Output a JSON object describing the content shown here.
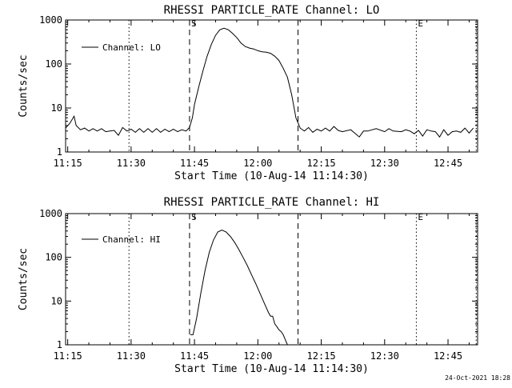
{
  "footer": {
    "timestamp": "24-Oct-2021 18:28"
  },
  "chart_data": [
    {
      "type": "line",
      "title": "RHESSI PARTICLE_RATE Channel: LO",
      "xlabel": "Start Time (10-Aug-14 11:14:30)",
      "ylabel": "Counts/sec",
      "yscale": "log",
      "ylim": [
        1,
        1000
      ],
      "yticks": [
        {
          "value": 1,
          "label": "1"
        },
        {
          "value": 10,
          "label": "10"
        },
        {
          "value": 100,
          "label": "100"
        },
        {
          "value": 1000,
          "label": "1000"
        }
      ],
      "xlim": [
        "11:14:30",
        "12:52:00"
      ],
      "xticks": [
        "11:15",
        "11:30",
        "11:45",
        "12:00",
        "12:15",
        "12:30",
        "12:45"
      ],
      "legend": {
        "position": "top-left",
        "label": "Channel: LO"
      },
      "markers": [
        {
          "time": "11:29:30",
          "style": "dotted",
          "label": ""
        },
        {
          "time": "11:43:50",
          "style": "dashed",
          "label": "S"
        },
        {
          "time": "12:09:30",
          "style": "dashed",
          "label": ""
        },
        {
          "time": "12:37:30",
          "style": "dotted",
          "label": "E"
        },
        {
          "time": "12:51:40",
          "style": "dotted",
          "label": ""
        }
      ],
      "series": [
        {
          "x": [
            "11:14:30",
            "11:15:30",
            "11:16:30",
            "11:17:00",
            "11:18:00",
            "11:19:00",
            "11:20:00",
            "11:21:00",
            "11:22:00",
            "11:23:00",
            "11:24:00",
            "11:25:00",
            "11:26:00",
            "11:27:00",
            "11:28:00",
            "11:29:00",
            "11:30:00",
            "11:31:00",
            "11:32:00",
            "11:33:00",
            "11:34:00",
            "11:35:00",
            "11:36:00",
            "11:37:00",
            "11:38:00",
            "11:39:00",
            "11:40:00",
            "11:41:00",
            "11:42:00",
            "11:43:00",
            "11:43:50",
            "11:44:30",
            "11:45:00",
            "11:46:00",
            "11:47:00",
            "11:48:00",
            "11:49:00",
            "11:50:00",
            "11:51:00",
            "11:52:00",
            "11:53:00",
            "11:54:00",
            "11:55:00",
            "11:56:00",
            "11:57:00",
            "11:58:00",
            "11:59:00",
            "12:00:00",
            "12:01:00",
            "12:02:00",
            "12:03:00",
            "12:04:00",
            "12:05:00",
            "12:06:00",
            "12:07:00",
            "12:08:00",
            "12:09:00",
            "12:10:00",
            "12:11:00",
            "12:12:00",
            "12:13:00",
            "12:14:00",
            "12:15:00",
            "12:16:00",
            "12:17:00",
            "12:18:00",
            "12:19:00",
            "12:20:00",
            "12:22:00",
            "12:24:00",
            "12:25:00",
            "12:26:00",
            "12:28:00",
            "12:30:00",
            "12:31:00",
            "12:32:00",
            "12:34:00",
            "12:35:00",
            "12:36:00",
            "12:37:00",
            "12:38:00",
            "12:39:00",
            "12:40:00",
            "12:41:00",
            "12:42:00",
            "12:43:00",
            "12:44:00",
            "12:45:00",
            "12:46:00",
            "12:47:00",
            "12:48:00",
            "12:49:00",
            "12:50:00",
            "12:51:00"
          ],
          "y": [
            3.5,
            4.5,
            6.5,
            4.0,
            3.2,
            3.5,
            3.0,
            3.4,
            3.0,
            3.4,
            2.9,
            3.0,
            3.1,
            2.4,
            3.6,
            3.0,
            3.3,
            2.8,
            3.4,
            2.8,
            3.4,
            2.8,
            3.4,
            2.8,
            3.3,
            2.9,
            3.3,
            2.9,
            3.2,
            3.0,
            3.6,
            6,
            12,
            30,
            70,
            150,
            280,
            450,
            600,
            650,
            600,
            500,
            400,
            300,
            250,
            230,
            220,
            200,
            190,
            185,
            175,
            150,
            120,
            80,
            50,
            20,
            6,
            3.5,
            3.0,
            3.6,
            2.8,
            3.3,
            3.0,
            3.5,
            3.0,
            3.8,
            3.1,
            2.9,
            3.2,
            2.2,
            3.0,
            3.0,
            3.4,
            2.9,
            3.4,
            3.0,
            2.9,
            3.2,
            3.0,
            2.6,
            3.1,
            2.3,
            3.2,
            3.0,
            2.9,
            2.2,
            3.2,
            2.4,
            2.9,
            3.0,
            2.8,
            3.5,
            2.7,
            3.5
          ]
        }
      ]
    },
    {
      "type": "line",
      "title": "RHESSI PARTICLE_RATE Channel: HI",
      "xlabel": "Start Time (10-Aug-14 11:14:30)",
      "ylabel": "Counts/sec",
      "yscale": "log",
      "ylim": [
        1,
        1000
      ],
      "yticks": [
        {
          "value": 1,
          "label": "1"
        },
        {
          "value": 10,
          "label": "10"
        },
        {
          "value": 100,
          "label": "100"
        },
        {
          "value": 1000,
          "label": "1000"
        }
      ],
      "xlim": [
        "11:14:30",
        "12:52:00"
      ],
      "xticks": [
        "11:15",
        "11:30",
        "11:45",
        "12:00",
        "12:15",
        "12:30",
        "12:45"
      ],
      "legend": {
        "position": "top-left",
        "label": "Channel: HI"
      },
      "markers": [
        {
          "time": "11:29:30",
          "style": "dotted",
          "label": ""
        },
        {
          "time": "11:43:50",
          "style": "dashed",
          "label": "S"
        },
        {
          "time": "12:09:30",
          "style": "dashed",
          "label": ""
        },
        {
          "time": "12:37:30",
          "style": "dotted",
          "label": "E"
        },
        {
          "time": "12:51:40",
          "style": "dotted",
          "label": ""
        }
      ],
      "series": [
        {
          "x": [
            "11:44:00",
            "11:44:40",
            "11:45:30",
            "11:46:30",
            "11:47:30",
            "11:48:30",
            "11:49:30",
            "11:50:30",
            "11:51:30",
            "11:52:30",
            "11:53:30",
            "11:54:30",
            "11:55:30",
            "11:56:30",
            "11:57:30",
            "11:58:30",
            "11:59:30",
            "12:00:30",
            "12:01:30",
            "12:02:30",
            "12:03:00",
            "12:03:30",
            "12:04:00",
            "12:04:30",
            "12:05:00",
            "12:05:30",
            "12:06:00",
            "12:06:30",
            "12:07:00"
          ],
          "y": [
            1.7,
            1.7,
            4,
            15,
            50,
            130,
            250,
            380,
            420,
            380,
            300,
            220,
            150,
            100,
            65,
            40,
            25,
            15,
            9,
            5.5,
            4.5,
            4.5,
            3.0,
            2.6,
            2.2,
            2.0,
            1.7,
            1.3,
            1.0
          ]
        }
      ]
    }
  ]
}
